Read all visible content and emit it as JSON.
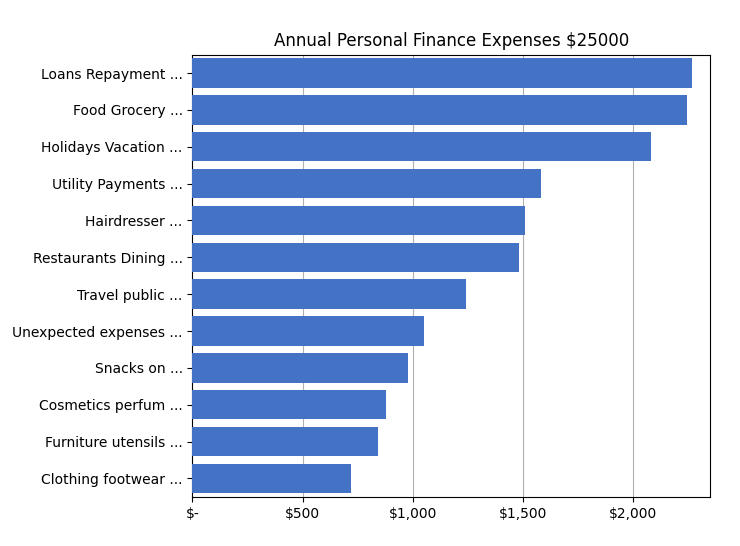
{
  "chart_data": {
    "type": "bar",
    "orientation": "horizontal",
    "title": "Annual Personal Finance Expenses $25000",
    "categories": [
      "Loans Repayment ...",
      "Food Grocery ...",
      "Holidays Vacation ...",
      "Utility Payments ...",
      "Hairdresser ...",
      "Restaurants Dining ...",
      "Travel public ...",
      "Unexpected expenses ...",
      "Snacks on ...",
      "Cosmetics perfum ...",
      "Furniture utensils ...",
      "Clothing footwear ..."
    ],
    "values": [
      2268,
      2243,
      2082,
      1580,
      1510,
      1480,
      1240,
      1050,
      980,
      880,
      840,
      720
    ],
    "color": "#4472C4",
    "xlim": [
      0,
      2350
    ],
    "xticks": [
      {
        "value": 0,
        "label": "$-"
      },
      {
        "value": 500,
        "label": "$500"
      },
      {
        "value": 1000,
        "label": "$1,000"
      },
      {
        "value": 1500,
        "label": "$1,500"
      },
      {
        "value": 2000,
        "label": "$2,000"
      }
    ],
    "grid": true
  }
}
